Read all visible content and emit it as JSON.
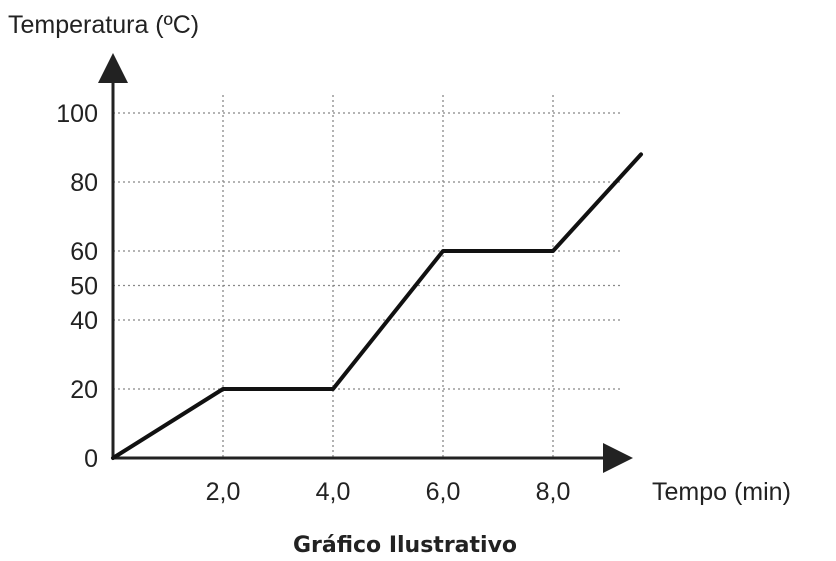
{
  "chart_data": {
    "type": "line",
    "ylabel": "Temperatura (ºC)",
    "xlabel": "Tempo (min)",
    "caption": "Gráfico Ilustrativo",
    "x_ticks": [
      2.0,
      4.0,
      6.0,
      8.0
    ],
    "x_tick_labels": [
      "2,0",
      "4,0",
      "6,0",
      "8,0"
    ],
    "y_ticks": [
      0,
      20,
      40,
      50,
      60,
      80,
      100
    ],
    "y_tick_labels": [
      "0",
      "20",
      "40",
      "50",
      "60",
      "80",
      "100"
    ],
    "xlim": [
      0,
      9.6
    ],
    "ylim": [
      0,
      100
    ],
    "grid": true,
    "series": [
      {
        "x": [
          0,
          2.0,
          4.0,
          6.0,
          8.0,
          9.6
        ],
        "y": [
          0,
          20,
          20,
          60,
          60,
          88
        ]
      }
    ]
  }
}
